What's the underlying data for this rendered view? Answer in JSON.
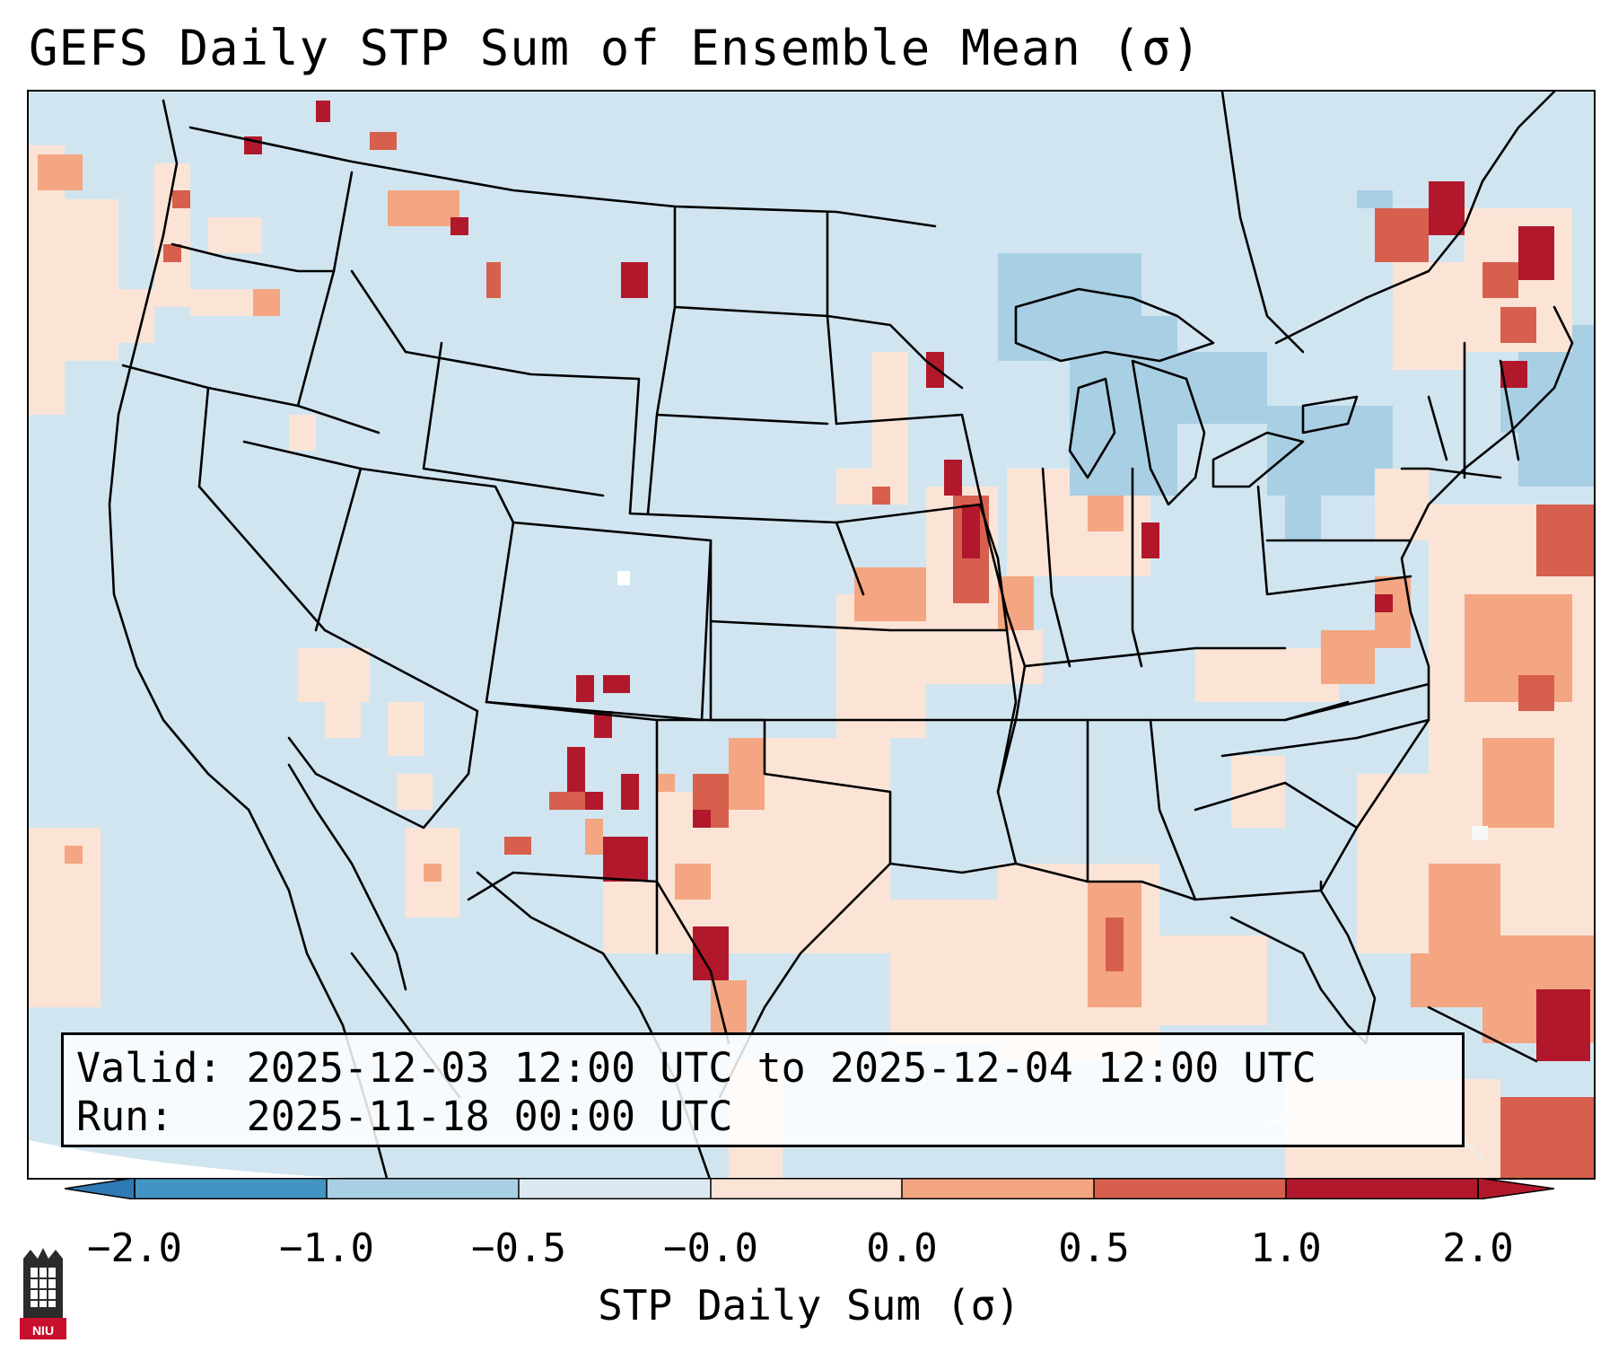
{
  "title": "GEFS Daily STP Sum of Ensemble Mean (σ)",
  "info": {
    "valid_line": "Valid: 2025-12-03 12:00 UTC to 2025-12-04 12:00 UTC",
    "run_line": "Run:   2025-11-18 00:00 UTC"
  },
  "colorbar": {
    "label": "STP Daily Sum (σ)",
    "tick_labels": [
      "−2.0",
      "−1.0",
      "−0.5",
      "−0.0",
      "0.0",
      "0.5",
      "1.0",
      "2.0"
    ],
    "colors": [
      "#2f79b5",
      "#68a9cf",
      "#a9cfe4",
      "#dde9f2",
      "#fbe4d6",
      "#f4a582",
      "#d6604d",
      "#b2182b"
    ]
  },
  "map": {
    "background_color": "#d1e5f0",
    "region": "Contiguous United States and surroundings",
    "features": [
      "state-borders",
      "coastlines",
      "great-lakes",
      "gulf-of-mexico",
      "atlantic-ocean",
      "pacific-ocean",
      "mexico",
      "cuba"
    ]
  },
  "logo": {
    "text": "NIU",
    "color": "#c8102e"
  }
}
